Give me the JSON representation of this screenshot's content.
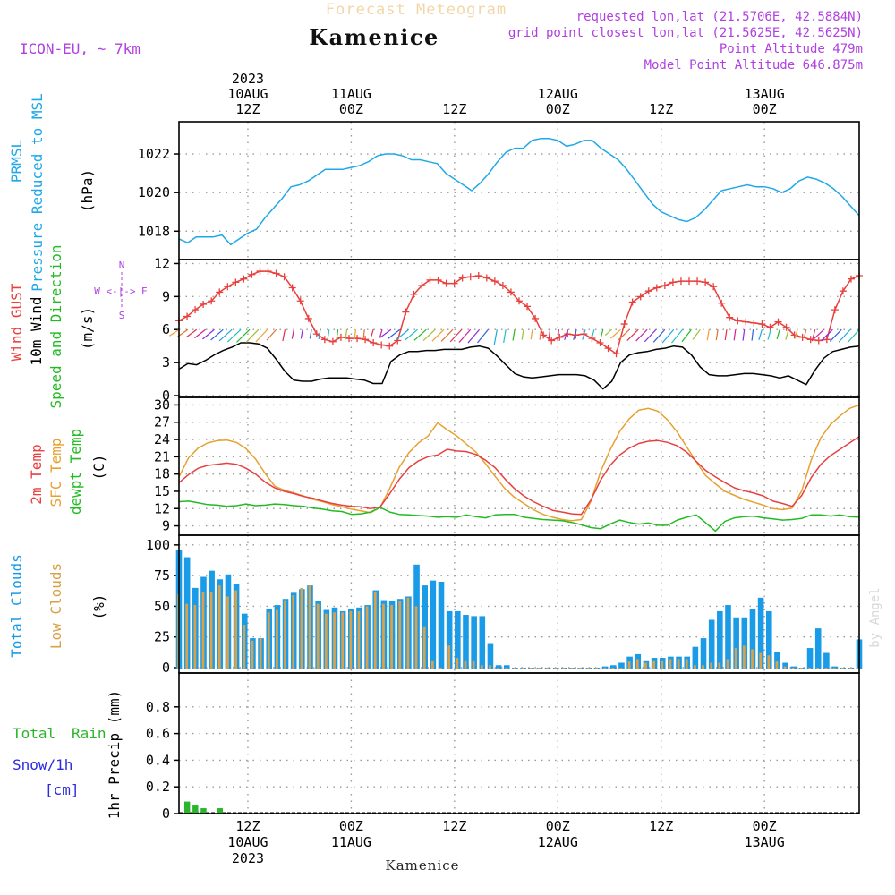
{
  "header": {
    "title_faded": "Forecast Meteogram",
    "location": "Kamenice",
    "model": "ICON-EU, ~ 7km",
    "requested": "requested lon,lat (21.5706E, 42.5884N)",
    "gridpoint": "grid point closest lon,lat (21.5625E, 42.5625N)",
    "point_alt": "Point Altitude 479m",
    "model_alt": "Model Point Altitude 646.875m",
    "footer_location": "Kamenice",
    "credit": "by Angel"
  },
  "time_axis": {
    "start_hour": 4,
    "end_hour": 83,
    "top": [
      {
        "hour": 12,
        "lines": [
          "2023",
          "10AUG",
          "12Z"
        ]
      },
      {
        "hour": 24,
        "lines": [
          "11AUG",
          "00Z"
        ]
      },
      {
        "hour": 36,
        "lines": [
          "12Z"
        ]
      },
      {
        "hour": 48,
        "lines": [
          "12AUG",
          "00Z"
        ]
      },
      {
        "hour": 60,
        "lines": [
          "12Z"
        ]
      },
      {
        "hour": 72,
        "lines": [
          "13AUG",
          "00Z"
        ]
      }
    ],
    "bottom": [
      {
        "hour": 12,
        "lines": [
          "12Z",
          "10AUG",
          "2023"
        ]
      },
      {
        "hour": 24,
        "lines": [
          "00Z",
          "11AUG"
        ]
      },
      {
        "hour": 36,
        "lines": [
          "12Z"
        ]
      },
      {
        "hour": 48,
        "lines": [
          "00Z",
          "12AUG"
        ]
      },
      {
        "hour": 60,
        "lines": [
          "12Z"
        ]
      },
      {
        "hour": 72,
        "lines": [
          "00Z",
          "13AUG"
        ]
      }
    ]
  },
  "colors": {
    "pressure": "#1ea8e8",
    "gust": "#e8403c",
    "wind": "#000000",
    "wind_label": "#22bb22",
    "temp2m": "#e84040",
    "sfc": "#e8a030",
    "dewpt": "#22bb22",
    "total_clouds": "#1a9be8",
    "low_clouds": "#d9a24a",
    "rain": "#2ab52a",
    "snow": "#2a2ae0",
    "magenta": "#b040e0"
  },
  "chart_data": [
    {
      "type": "line",
      "name": "pressure_panel",
      "ylabels": [
        "PRMSL",
        "Pressure Reduced to MSL",
        "(hPa)"
      ],
      "ylim": [
        1016.9,
        1023.3
      ],
      "yticks": [
        1018,
        1020,
        1022
      ],
      "series": [
        {
          "name": "PRMSL",
          "values": [
            1017.6,
            1017.4,
            1017.7,
            1017.7,
            1017.7,
            1017.8,
            1017.3,
            1017.6,
            1017.9,
            1018.1,
            1018.7,
            1019.2,
            1019.7,
            1020.3,
            1020.4,
            1020.6,
            1020.9,
            1021.2,
            1021.2,
            1021.2,
            1021.3,
            1021.4,
            1021.6,
            1021.9,
            1022.0,
            1022.0,
            1021.9,
            1021.7,
            1021.7,
            1021.6,
            1021.5,
            1021.0,
            1020.7,
            1020.4,
            1020.1,
            1020.5,
            1021.0,
            1021.6,
            1022.1,
            1022.3,
            1022.3,
            1022.7,
            1022.8,
            1022.8,
            1022.7,
            1022.4,
            1022.5,
            1022.7,
            1022.7,
            1022.3,
            1022.0,
            1021.7,
            1021.2,
            1020.6,
            1020.0,
            1019.4,
            1019.0,
            1018.8,
            1018.6,
            1018.5,
            1018.7,
            1019.1,
            1019.6,
            1020.1,
            1020.2,
            1020.3,
            1020.4,
            1020.3,
            1020.3,
            1020.2,
            1020.0,
            1020.2,
            1020.6,
            1020.8,
            1020.7,
            1020.5,
            1020.2,
            1019.8,
            1019.3,
            1018.8
          ]
        }
      ]
    },
    {
      "type": "line",
      "name": "wind_panel",
      "ylabels": [
        "Wind GUST",
        "10m Wind",
        "Speed and Direction",
        "(m/s)"
      ],
      "compass": [
        "N",
        "W <-|-> E",
        "S"
      ],
      "ylim": [
        0,
        12.2
      ],
      "yticks": [
        0,
        3,
        6,
        9,
        12
      ],
      "series": [
        {
          "name": "Wind GUST",
          "values": [
            6.8,
            7.2,
            7.8,
            8.3,
            8.6,
            9.4,
            9.9,
            10.3,
            10.6,
            11.0,
            11.3,
            11.3,
            11.1,
            10.8,
            9.8,
            8.6,
            7.0,
            5.6,
            5.1,
            4.9,
            5.3,
            5.2,
            5.2,
            5.1,
            4.8,
            4.6,
            4.5,
            5.0,
            7.6,
            9.2,
            10.0,
            10.5,
            10.5,
            10.2,
            10.2,
            10.7,
            10.8,
            10.9,
            10.7,
            10.4,
            10.0,
            9.4,
            8.6,
            8.1,
            7.0,
            5.5,
            5.0,
            5.3,
            5.6,
            5.5,
            5.6,
            5.2,
            4.8,
            4.3,
            3.8,
            6.5,
            8.5,
            9.0,
            9.5,
            9.8,
            10.0,
            10.3,
            10.4,
            10.4,
            10.4,
            10.3,
            9.9,
            8.4,
            7.1,
            6.8,
            6.7,
            6.6,
            6.5,
            6.2,
            6.7,
            6.2,
            5.5,
            5.3,
            5.1,
            5.0,
            5.1,
            7.8,
            9.5,
            10.6,
            10.9
          ]
        },
        {
          "name": "10m Wind",
          "values": [
            2.4,
            2.9,
            2.8,
            3.2,
            3.7,
            4.1,
            4.4,
            4.8,
            4.8,
            4.7,
            4.3,
            3.3,
            2.2,
            1.4,
            1.3,
            1.3,
            1.5,
            1.6,
            1.6,
            1.6,
            1.5,
            1.4,
            1.1,
            1.1,
            3.1,
            3.7,
            4.0,
            4.0,
            4.1,
            4.1,
            4.2,
            4.2,
            4.2,
            4.4,
            4.5,
            4.3,
            3.6,
            2.8,
            2.0,
            1.7,
            1.6,
            1.7,
            1.8,
            1.9,
            1.9,
            1.9,
            1.8,
            1.4,
            0.6,
            1.3,
            3.0,
            3.7,
            3.9,
            4.0,
            4.2,
            4.3,
            4.5,
            4.4,
            3.7,
            2.6,
            1.9,
            1.8,
            1.8,
            1.9,
            2.0,
            2.0,
            1.9,
            1.8,
            1.6,
            1.8,
            1.4,
            1.0,
            2.3,
            3.4,
            4.0,
            4.2,
            4.4,
            4.5
          ]
        }
      ]
    },
    {
      "type": "line",
      "name": "temperature_panel",
      "ylabels": [
        "2m Temp",
        "SFC Temp",
        "dewpt Temp",
        "(C)"
      ],
      "ylim": [
        8,
        31
      ],
      "yticks": [
        9,
        12,
        15,
        18,
        21,
        24,
        27,
        30
      ],
      "series": [
        {
          "name": "2m Temp",
          "values": [
            16.5,
            17.9,
            19.0,
            19.5,
            19.7,
            19.9,
            19.7,
            19.0,
            18.0,
            16.6,
            15.6,
            15.0,
            14.6,
            14.1,
            13.8,
            13.3,
            12.9,
            12.6,
            12.4,
            12.3,
            12.0,
            12.3,
            14.6,
            17.1,
            19.1,
            20.3,
            21.0,
            21.3,
            22.3,
            22.0,
            21.9,
            21.4,
            20.4,
            19.1,
            17.2,
            15.5,
            14.2,
            13.2,
            12.4,
            11.7,
            11.4,
            11.1,
            11.0,
            13.5,
            16.9,
            19.5,
            21.3,
            22.5,
            23.3,
            23.7,
            23.8,
            23.5,
            22.9,
            21.8,
            20.2,
            18.6,
            17.5,
            16.5,
            15.6,
            15.1,
            14.7,
            14.2,
            13.3,
            12.9,
            12.4,
            14.3,
            17.4,
            19.7,
            21.2,
            22.3,
            23.4,
            24.5
          ]
        },
        {
          "name": "SFC Temp",
          "values": [
            17.5,
            20.8,
            22.5,
            23.4,
            23.8,
            23.9,
            23.5,
            22.4,
            20.6,
            18.1,
            15.9,
            15.2,
            14.7,
            14.2,
            13.6,
            13.2,
            12.7,
            12.3,
            11.9,
            11.6,
            11.3,
            12.2,
            15.5,
            19.2,
            21.7,
            23.4,
            24.6,
            26.9,
            25.7,
            24.6,
            23.2,
            21.8,
            19.8,
            17.6,
            15.5,
            14.0,
            12.9,
            11.8,
            11.0,
            10.5,
            10.1,
            9.9,
            10.1,
            13.3,
            18.4,
            22.2,
            25.4,
            27.6,
            29.1,
            29.4,
            28.9,
            27.4,
            25.3,
            22.7,
            20.1,
            17.7,
            16.3,
            15.0,
            14.3,
            13.6,
            13.1,
            12.6,
            12.0,
            11.8,
            12.1,
            15.1,
            20.5,
            24.3,
            26.6,
            28.1,
            29.4,
            30.0
          ]
        },
        {
          "name": "dewpt Temp",
          "values": [
            13.2,
            13.3,
            13.0,
            12.7,
            12.6,
            12.4,
            12.5,
            12.8,
            12.5,
            12.6,
            12.8,
            12.7,
            12.5,
            12.4,
            12.1,
            11.9,
            11.6,
            11.5,
            11.0,
            11.1,
            11.4,
            12.2,
            11.4,
            11.0,
            10.9,
            10.8,
            10.7,
            10.5,
            10.6,
            10.5,
            10.9,
            10.6,
            10.4,
            10.9,
            11.0,
            11.0,
            10.5,
            10.3,
            10.1,
            10.0,
            9.9,
            9.6,
            9.2,
            8.7,
            8.5,
            9.3,
            10.0,
            9.6,
            9.3,
            9.5,
            9.1,
            9.1,
            10.0,
            10.5,
            10.9,
            9.5,
            8.1,
            9.8,
            10.4,
            10.6,
            10.7,
            10.4,
            10.2,
            10.0,
            10.1,
            10.3,
            10.9,
            10.9,
            10.7,
            10.9,
            10.6,
            10.5
          ]
        }
      ]
    },
    {
      "type": "bar",
      "name": "clouds_panel",
      "ylabels": [
        "Total Clouds",
        "Low Clouds",
        "(%)"
      ],
      "ylim": [
        0,
        105
      ],
      "yticks": [
        0,
        25,
        50,
        75,
        100
      ],
      "series": [
        {
          "name": "Total Clouds",
          "values": [
            96,
            90,
            65,
            74,
            79,
            72,
            76,
            68,
            44,
            24,
            24,
            48,
            51,
            56,
            61,
            64,
            67,
            54,
            47,
            49,
            46,
            48,
            49,
            51,
            63,
            55,
            54,
            56,
            58,
            84,
            67,
            71,
            70,
            46,
            46,
            43,
            42,
            42,
            20,
            2,
            2,
            0,
            0,
            0,
            0,
            0,
            0,
            0,
            0,
            0,
            0,
            0,
            1,
            2,
            4,
            9,
            11,
            6,
            8,
            8,
            9,
            9,
            9,
            17,
            24,
            39,
            46,
            51,
            41,
            41,
            48,
            57,
            46,
            13,
            4,
            1,
            0,
            16,
            32,
            12,
            1,
            0,
            0,
            23
          ]
        },
        {
          "name": "Low Clouds",
          "values": [
            60,
            52,
            51,
            62,
            62,
            67,
            58,
            63,
            35,
            22,
            24,
            45,
            47,
            55,
            59,
            65,
            67,
            52,
            44,
            45,
            45,
            46,
            46,
            50,
            62,
            52,
            51,
            54,
            57,
            50,
            33,
            6,
            0,
            18,
            8,
            6,
            6,
            2,
            2,
            0,
            0,
            0,
            0,
            0,
            0,
            0,
            0,
            0,
            0,
            0,
            0,
            0,
            0,
            0,
            0,
            5,
            7,
            4,
            6,
            6,
            7,
            7,
            7,
            2,
            2,
            4,
            4,
            7,
            16,
            18,
            15,
            12,
            10,
            5,
            1,
            0,
            0,
            0,
            0,
            0,
            0,
            0,
            0,
            0
          ]
        }
      ]
    },
    {
      "type": "bar",
      "name": "precip_panel",
      "ylabels": [
        "Total",
        "Rain",
        "Snow/1h",
        "[cm]",
        "1hr Precip (mm)"
      ],
      "ylim": [
        0,
        1.0
      ],
      "yticks": [
        0,
        0.2,
        0.4,
        0.6,
        0.8
      ],
      "series": [
        {
          "name": "Total Rain",
          "values": [
            0,
            0.09,
            0.06,
            0.04,
            0,
            0.04,
            0,
            0,
            0,
            0,
            0,
            0,
            0,
            0,
            0,
            0,
            0,
            0,
            0,
            0,
            0,
            0,
            0,
            0,
            0,
            0,
            0,
            0,
            0,
            0,
            0,
            0,
            0,
            0,
            0,
            0,
            0,
            0,
            0,
            0,
            0,
            0,
            0,
            0,
            0,
            0,
            0,
            0,
            0,
            0,
            0,
            0,
            0,
            0,
            0,
            0,
            0,
            0,
            0,
            0,
            0,
            0,
            0,
            0,
            0,
            0,
            0,
            0,
            0,
            0,
            0,
            0,
            0,
            0,
            0,
            0,
            0,
            0,
            0,
            0,
            0,
            0,
            0,
            0
          ]
        }
      ]
    }
  ]
}
